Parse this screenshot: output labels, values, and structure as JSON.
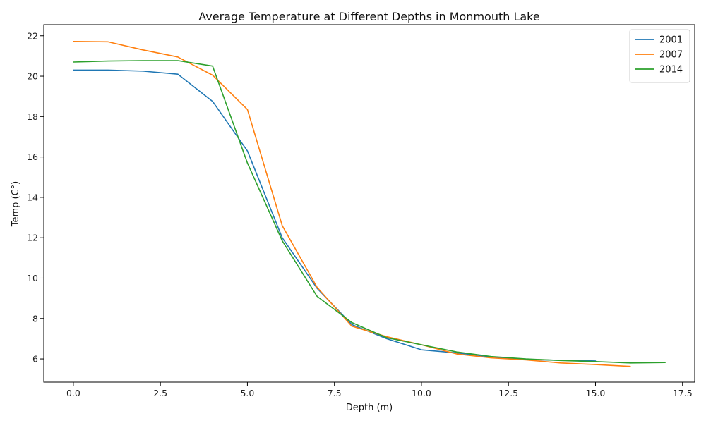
{
  "chart_data": {
    "type": "line",
    "title": "Average Temperature at Different Depths in Monmouth Lake",
    "xlabel": "Depth (m)",
    "ylabel": "Temp (C°)",
    "xlim": [
      -0.85,
      17.85
    ],
    "ylim": [
      4.85,
      22.55
    ],
    "xticks": [
      0.0,
      2.5,
      5.0,
      7.5,
      10.0,
      12.5,
      15.0,
      17.5
    ],
    "xtick_labels": [
      "0.0",
      "2.5",
      "5.0",
      "7.5",
      "10.0",
      "12.5",
      "15.0",
      "17.5"
    ],
    "yticks": [
      6,
      8,
      10,
      12,
      14,
      16,
      18,
      20,
      22
    ],
    "ytick_labels": [
      "6",
      "8",
      "10",
      "12",
      "14",
      "16",
      "18",
      "20",
      "22"
    ],
    "grid": false,
    "legend_position": "top-right",
    "series": [
      {
        "name": "2001",
        "color": "#1f77b4",
        "x": [
          0,
          1,
          2,
          3,
          4,
          5,
          6,
          7,
          8,
          9,
          10,
          11,
          12,
          13,
          14,
          15
        ],
        "y": [
          20.3,
          20.3,
          20.25,
          20.1,
          18.75,
          16.3,
          12.0,
          9.5,
          7.7,
          7.0,
          6.45,
          6.3,
          6.1,
          5.97,
          5.93,
          5.9
        ]
      },
      {
        "name": "2007",
        "color": "#ff7f0e",
        "x": [
          0,
          1,
          2,
          3,
          4,
          5,
          6,
          7,
          8,
          9,
          10,
          11,
          12,
          13,
          14,
          15,
          16
        ],
        "y": [
          21.72,
          21.7,
          21.3,
          20.95,
          20.05,
          18.35,
          12.6,
          9.55,
          7.62,
          7.1,
          6.7,
          6.25,
          6.05,
          5.95,
          5.8,
          5.72,
          5.63
        ]
      },
      {
        "name": "2014",
        "color": "#2ca02c",
        "x": [
          0,
          1,
          2,
          3,
          4,
          5,
          6,
          7,
          8,
          9,
          10,
          11,
          12,
          13,
          14,
          15,
          16,
          17
        ],
        "y": [
          20.7,
          20.75,
          20.77,
          20.77,
          20.5,
          15.7,
          11.85,
          9.1,
          7.8,
          7.05,
          6.7,
          6.35,
          6.12,
          6.0,
          5.92,
          5.87,
          5.8,
          5.82
        ]
      }
    ]
  }
}
